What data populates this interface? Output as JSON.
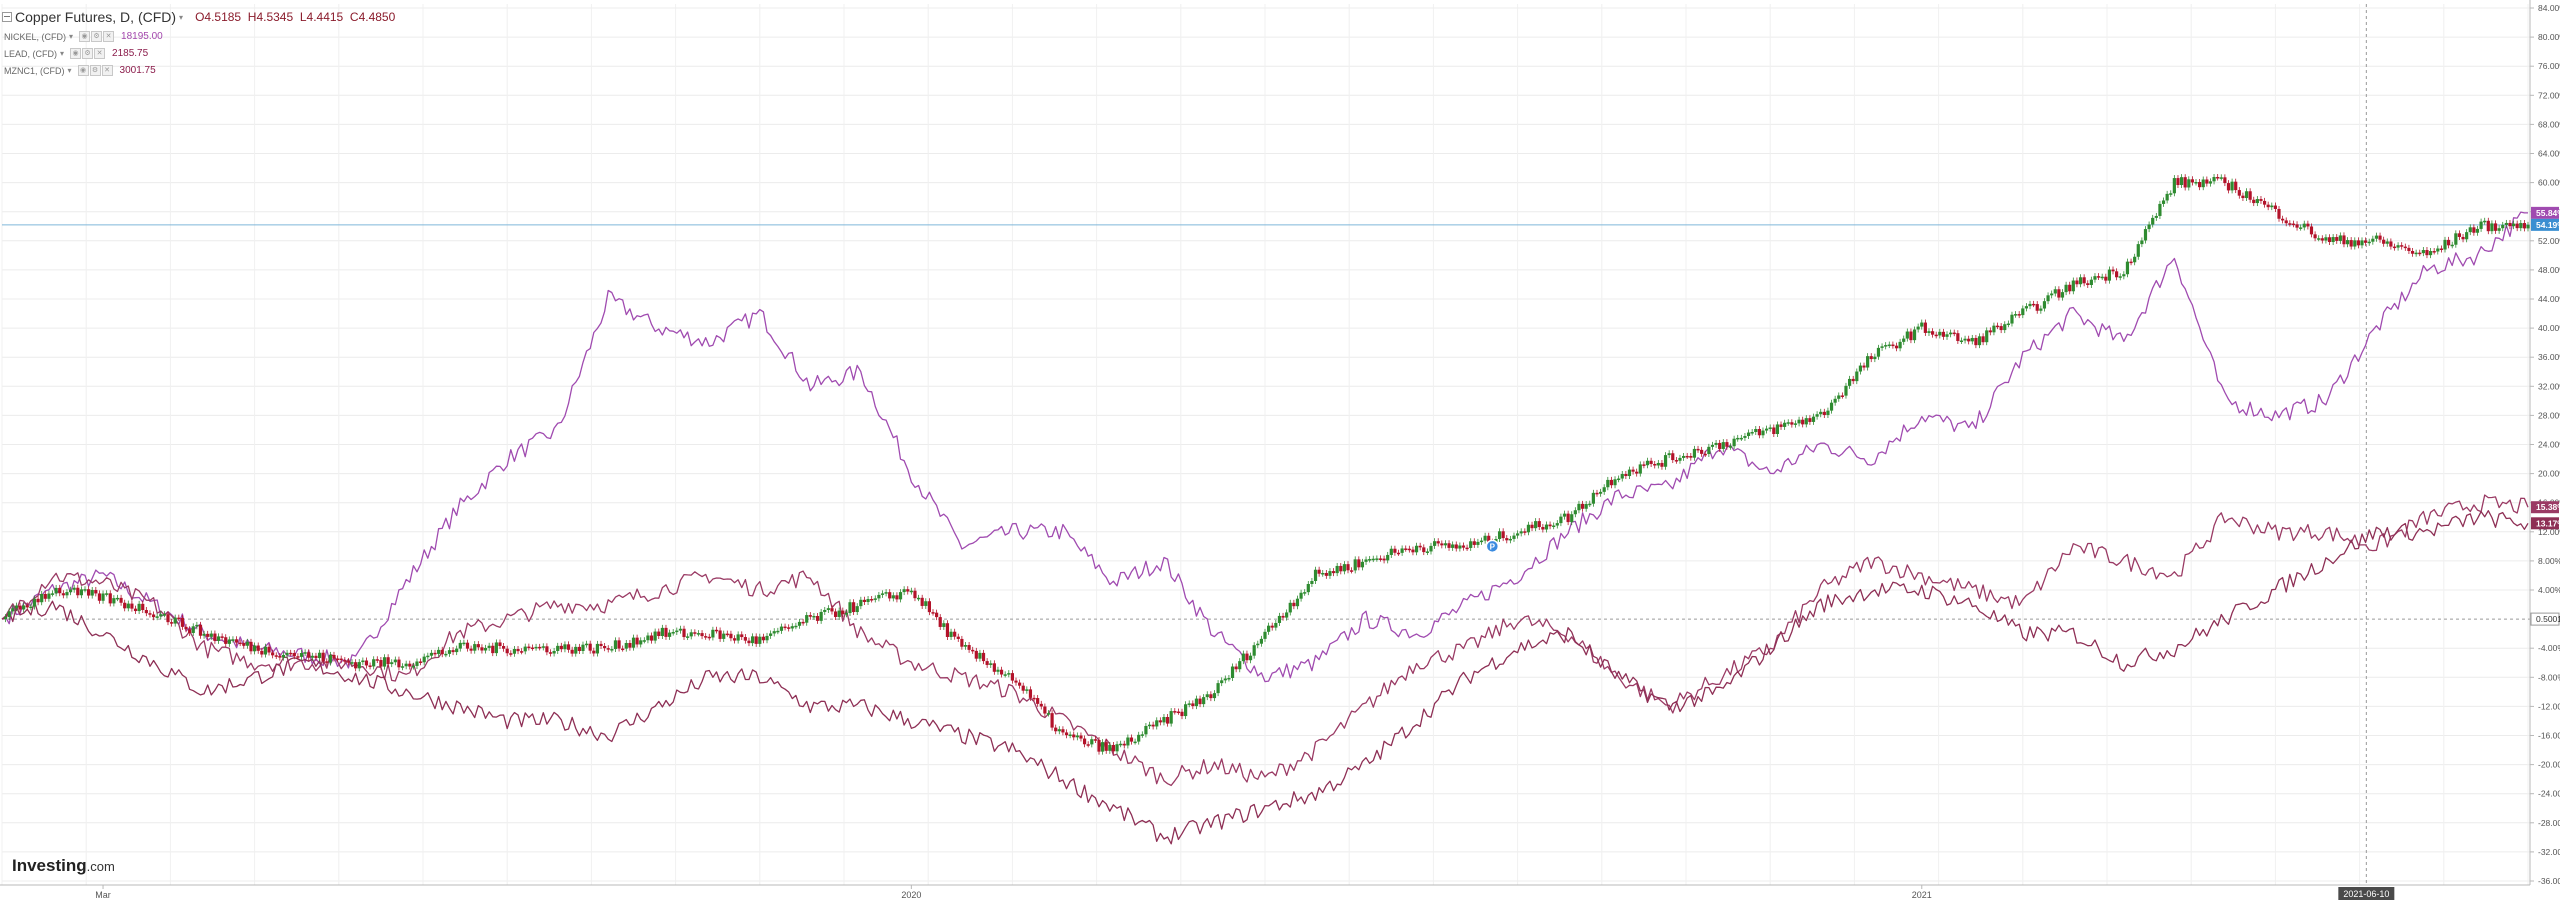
{
  "legend": {
    "main": {
      "title": "Copper Futures, D, (CFD)",
      "o_label": "O",
      "o": "4.5185",
      "h_label": "H",
      "h": "4.5345",
      "l_label": "L",
      "l": "4.4415",
      "c_label": "C",
      "c": "4.4850"
    },
    "series": [
      {
        "name": "NICKEL, (CFD)",
        "value": "18195.00",
        "color": "#a347ad"
      },
      {
        "name": "LEAD, (CFD)",
        "value": "2185.75",
        "color": "#8b1c4b"
      },
      {
        "name": "MZNC1, (CFD)",
        "value": "3001.75",
        "color": "#8b1c4b"
      }
    ]
  },
  "logo": {
    "brand": "Investing",
    "suffix": ".com"
  },
  "colors": {
    "nickel": "#a04bb0",
    "lead": "#9a3a64",
    "zinc": "#8e2f55",
    "up": "#2e8b30",
    "down": "#b3122a",
    "crosshair": "#7fb6d9"
  },
  "chart_data": {
    "type": "line",
    "title": "Copper Futures, D, (CFD)",
    "yunit": "%",
    "ylim": [
      -32,
      84
    ],
    "y_ticks": [
      "84.00%",
      "80.00%",
      "76.00%",
      "72.00%",
      "68.00%",
      "64.00%",
      "60.00%",
      "56.00%",
      "52.00%",
      "48.00%",
      "44.00%",
      "40.00%",
      "36.00%",
      "32.00%",
      "28.00%",
      "24.00%",
      "20.00%",
      "16.00%",
      "12.00%",
      "8.00%",
      "4.00%",
      "0.5001",
      "-4.00%",
      "-8.00%",
      "-12.00%",
      "-16.00%",
      "-20.00%",
      "-24.00%",
      "-28.00%",
      "-32.00%",
      "-36.00%"
    ],
    "x_labels": [
      {
        "label": "Mar",
        "x": 0.04
      },
      {
        "label": "2020",
        "x": 0.36
      },
      {
        "label": "2021",
        "x": 0.76
      },
      {
        "label": "2021-06-10",
        "x": 0.936
      }
    ],
    "x": [
      0,
      0.02,
      0.04,
      0.06,
      0.08,
      0.1,
      0.12,
      0.14,
      0.16,
      0.18,
      0.2,
      0.22,
      0.24,
      0.26,
      0.28,
      0.3,
      0.32,
      0.34,
      0.36,
      0.38,
      0.4,
      0.42,
      0.44,
      0.46,
      0.48,
      0.5,
      0.52,
      0.54,
      0.56,
      0.58,
      0.6,
      0.62,
      0.64,
      0.66,
      0.68,
      0.7,
      0.72,
      0.74,
      0.76,
      0.78,
      0.8,
      0.82,
      0.84,
      0.86,
      0.88,
      0.9,
      0.92,
      0.94,
      0.96,
      0.98,
      1.0
    ],
    "series": [
      {
        "name": "NICKEL, (CFD)",
        "color": "#a04bb0",
        "last_label": "55.84%",
        "values": [
          0,
          4,
          6,
          2,
          -2,
          -4,
          -5,
          -6,
          5,
          15,
          22,
          26,
          44,
          40,
          38,
          42,
          32,
          34,
          20,
          10,
          12,
          12,
          5,
          8,
          -2,
          -8,
          -6,
          0,
          -2,
          2,
          6,
          12,
          17,
          18,
          24,
          20,
          24,
          22,
          28,
          26,
          36,
          42,
          38,
          50,
          30,
          28,
          30,
          40,
          48,
          50,
          55.84
        ]
      },
      {
        "name": "LEAD, (CFD)",
        "color": "#9a3a64",
        "last_label": "15.38%",
        "values": [
          0,
          6,
          5,
          2,
          -4,
          -6,
          -6,
          -6,
          -8,
          -2,
          0,
          2,
          2,
          4,
          6,
          4,
          6,
          -2,
          -6,
          -8,
          -10,
          -14,
          -18,
          -22,
          -20,
          -22,
          -18,
          -12,
          -6,
          -4,
          0,
          -2,
          -8,
          -12,
          -8,
          -4,
          4,
          8,
          6,
          4,
          2,
          10,
          8,
          6,
          14,
          12,
          12,
          10,
          14,
          16,
          15.38
        ]
      },
      {
        "name": "MZNC1, (CFD)",
        "color": "#8e2f55",
        "last_label": "13.17%",
        "values": [
          0,
          2,
          -2,
          -6,
          -10,
          -8,
          -6,
          -8,
          -10,
          -12,
          -14,
          -14,
          -16,
          -12,
          -8,
          -8,
          -12,
          -12,
          -14,
          -16,
          -18,
          -22,
          -26,
          -30,
          -28,
          -26,
          -24,
          -20,
          -14,
          -8,
          -4,
          -2,
          -8,
          -12,
          -10,
          -4,
          2,
          4,
          4,
          2,
          -2,
          -2,
          -6,
          -4,
          0,
          4,
          8,
          12,
          12,
          14,
          13.17
        ]
      },
      {
        "name": "Copper Futures",
        "color": "#2e8b30",
        "last_label": "54.19%",
        "values": [
          0,
          4,
          3,
          1,
          -2,
          -4,
          -5,
          -6,
          -6,
          -4,
          -4,
          -4,
          -4,
          -2,
          -2,
          -3,
          0,
          2,
          4,
          -4,
          -8,
          -16,
          -18,
          -14,
          -10,
          -2,
          6,
          8,
          10,
          10,
          12,
          14,
          20,
          22,
          24,
          26,
          28,
          36,
          40,
          38,
          42,
          46,
          48,
          60,
          60,
          56,
          52,
          52,
          50,
          54,
          54.19
        ]
      }
    ],
    "reference_line": {
      "value": 0,
      "label": "0.5001"
    },
    "marker_label": "P"
  }
}
